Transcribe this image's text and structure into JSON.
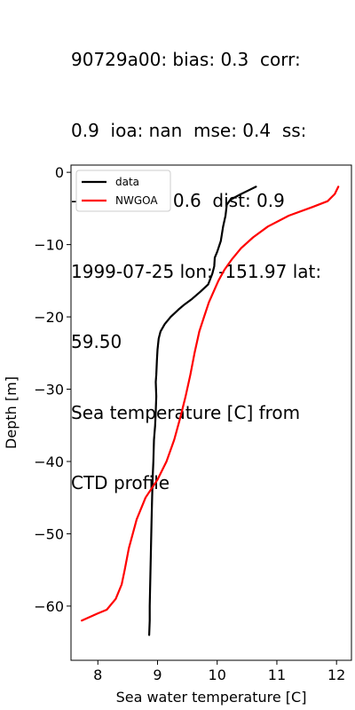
{
  "title_lines": [
    "90729a00: bias: 0.3  corr:",
    "0.9  ioa: nan  mse: 0.4  ss:",
    "-0.6  rmse: 0.6  dist: 0.9",
    "1999-07-25 lon: -151.97 lat:",
    "59.50",
    "Sea temperature [C] from",
    "CTD profile"
  ],
  "chart_data": {
    "type": "line",
    "title": "90729a00: bias: 0.3  corr: 0.9  ioa: nan  mse: 0.4  ss: -0.6  rmse: 0.6  dist: 0.9 1999-07-25 lon: -151.97 lat: 59.50 Sea temperature [C] from CTD profile",
    "xlabel": "Sea water temperature [C]",
    "ylabel": "Depth [m]",
    "xlim": [
      7.55,
      12.25
    ],
    "ylim": [
      -67.5,
      1.0
    ],
    "xticks": [
      8,
      9,
      10,
      11,
      12
    ],
    "yticks": [
      0,
      -10,
      -20,
      -30,
      -40,
      -50,
      -60
    ],
    "xtick_labels": [
      "8",
      "9",
      "10",
      "11",
      "12"
    ],
    "ytick_labels": [
      "0",
      "−10",
      "−20",
      "−30",
      "−40",
      "−50",
      "−60"
    ],
    "grid": false,
    "legend_position": "upper left",
    "series": [
      {
        "name": "data",
        "color": "#000000",
        "points": [
          [
            10.65,
            -2.0
          ],
          [
            10.55,
            -2.4
          ],
          [
            10.4,
            -3.0
          ],
          [
            10.22,
            -3.8
          ],
          [
            10.16,
            -4.5
          ],
          [
            10.14,
            -6.0
          ],
          [
            10.1,
            -7.5
          ],
          [
            10.06,
            -9.5
          ],
          [
            10.0,
            -11.0
          ],
          [
            9.96,
            -11.8
          ],
          [
            9.95,
            -13.0
          ],
          [
            9.92,
            -14.0
          ],
          [
            9.85,
            -15.5
          ],
          [
            9.72,
            -16.5
          ],
          [
            9.58,
            -17.5
          ],
          [
            9.45,
            -18.3
          ],
          [
            9.35,
            -19.0
          ],
          [
            9.22,
            -20.0
          ],
          [
            9.12,
            -21.0
          ],
          [
            9.05,
            -22.0
          ],
          [
            9.02,
            -23.0
          ],
          [
            9.0,
            -24.5
          ],
          [
            8.99,
            -26.0
          ],
          [
            8.98,
            -28.0
          ],
          [
            8.97,
            -29.0
          ],
          [
            8.98,
            -31.0
          ],
          [
            8.97,
            -33.0
          ],
          [
            8.96,
            -35.0
          ],
          [
            8.94,
            -37.0
          ],
          [
            8.93,
            -40.0
          ],
          [
            8.92,
            -42.0
          ],
          [
            8.91,
            -45.0
          ],
          [
            8.9,
            -48.0
          ],
          [
            8.89,
            -52.0
          ],
          [
            8.88,
            -56.0
          ],
          [
            8.87,
            -60.0
          ],
          [
            8.87,
            -62.0
          ],
          [
            8.86,
            -64.0
          ]
        ]
      },
      {
        "name": "NWGOA",
        "color": "#ff0000",
        "points": [
          [
            12.03,
            -2.0
          ],
          [
            11.97,
            -3.0
          ],
          [
            11.85,
            -4.0
          ],
          [
            11.6,
            -4.8
          ],
          [
            11.2,
            -6.0
          ],
          [
            10.85,
            -7.5
          ],
          [
            10.6,
            -9.0
          ],
          [
            10.4,
            -10.5
          ],
          [
            10.25,
            -12.0
          ],
          [
            10.12,
            -13.5
          ],
          [
            10.02,
            -15.0
          ],
          [
            9.94,
            -16.5
          ],
          [
            9.86,
            -18.0
          ],
          [
            9.78,
            -20.0
          ],
          [
            9.7,
            -22.0
          ],
          [
            9.62,
            -25.0
          ],
          [
            9.55,
            -28.0
          ],
          [
            9.47,
            -31.0
          ],
          [
            9.38,
            -34.0
          ],
          [
            9.28,
            -37.0
          ],
          [
            9.15,
            -40.0
          ],
          [
            9.0,
            -42.5
          ],
          [
            8.8,
            -45.0
          ],
          [
            8.65,
            -48.0
          ],
          [
            8.52,
            -52.0
          ],
          [
            8.45,
            -55.0
          ],
          [
            8.4,
            -57.0
          ],
          [
            8.3,
            -59.0
          ],
          [
            8.15,
            -60.5
          ],
          [
            8.0,
            -61.0
          ],
          [
            7.73,
            -62.0
          ]
        ]
      }
    ]
  }
}
